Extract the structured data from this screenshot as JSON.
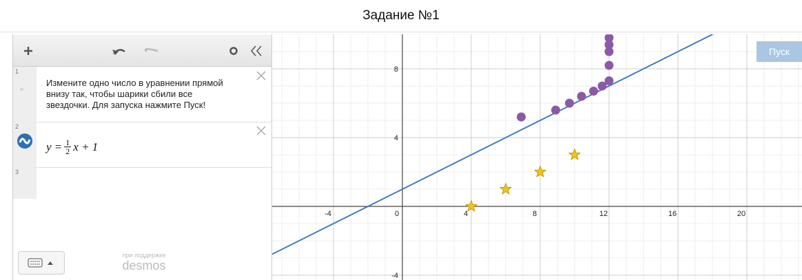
{
  "header": {
    "title": "Задание №1"
  },
  "expressions": [
    {
      "number": "1",
      "note_lines": [
        "Измените одно число в уравнении прямой",
        "внизу так, чтобы шарики сбили все",
        "звездочки. Для запуска нажмите Пуск!"
      ]
    },
    {
      "number": "2",
      "formula": {
        "left": "y =",
        "numerator": "1",
        "denominator": "2",
        "right": "x + 1"
      }
    },
    {
      "number": "3"
    }
  ],
  "footer": {
    "powered_by": "при поддержке",
    "brand": "desmos"
  },
  "run_button": "Пуск",
  "graph": {
    "xlim": [
      -7.56,
      23.2
    ],
    "ylim": [
      -4.28,
      10.0
    ],
    "xticks": [
      -4,
      0,
      4,
      8,
      12,
      16,
      20
    ],
    "yticks": [
      -4,
      4,
      8
    ],
    "line": {
      "slope": 0.5,
      "intercept": 1,
      "color": "#3f7fbf"
    },
    "points_color": "#8a5aa6",
    "points": [
      {
        "x": 6.9,
        "y": 5.2
      },
      {
        "x": 8.9,
        "y": 5.6
      },
      {
        "x": 9.7,
        "y": 6.0
      },
      {
        "x": 10.4,
        "y": 6.4
      },
      {
        "x": 11.1,
        "y": 6.7
      },
      {
        "x": 11.6,
        "y": 7.0
      },
      {
        "x": 12,
        "y": 7.3
      },
      {
        "x": 12,
        "y": 8.2
      },
      {
        "x": 12,
        "y": 9.0
      },
      {
        "x": 12,
        "y": 9.4
      },
      {
        "x": 12,
        "y": 9.8
      }
    ],
    "stars_color": "#f2c418",
    "stars": [
      {
        "x": 4,
        "y": 0
      },
      {
        "x": 6,
        "y": 1
      },
      {
        "x": 8,
        "y": 2
      },
      {
        "x": 10,
        "y": 3
      }
    ]
  }
}
